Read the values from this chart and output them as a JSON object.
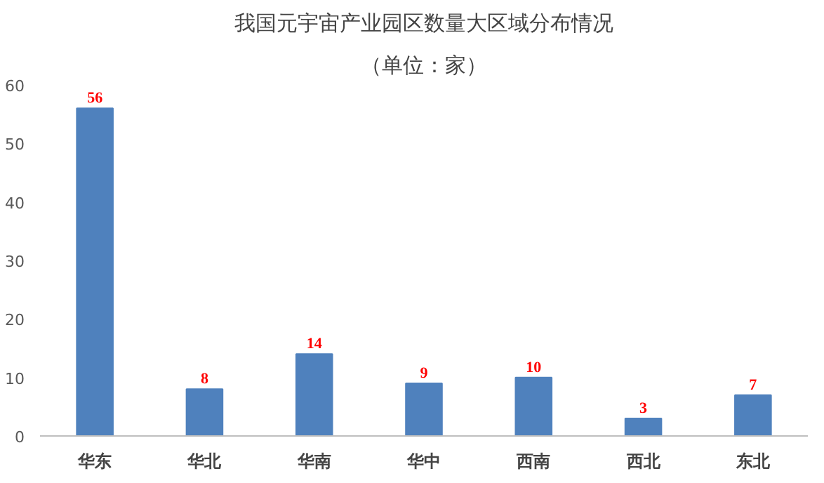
{
  "chart_data": {
    "type": "bar",
    "title": "我国元宇宙产业园区数量大区域分布情况",
    "subtitle": "（单位：家）",
    "categories": [
      "华东",
      "华北",
      "华南",
      "华中",
      "西南",
      "西北",
      "东北"
    ],
    "values": [
      56,
      8,
      14,
      9,
      10,
      3,
      7
    ],
    "color": "#4f81bd",
    "ylim": [
      0,
      60
    ],
    "yticks": [
      0,
      10,
      20,
      30,
      40,
      50,
      60
    ],
    "grid": false,
    "data_labels": true
  }
}
